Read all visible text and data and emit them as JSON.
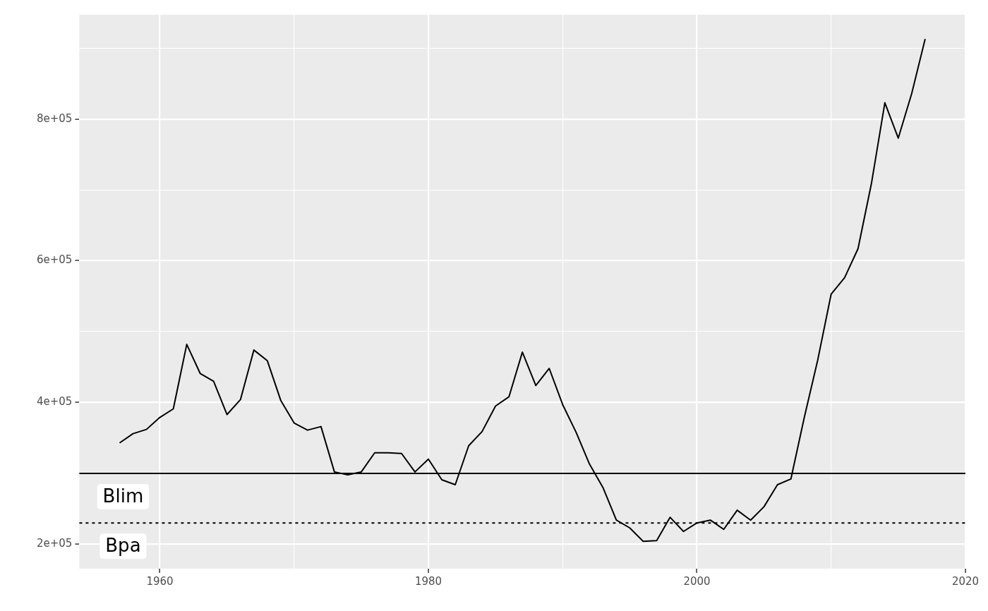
{
  "chart_data": {
    "type": "line",
    "x": [
      1957,
      1958,
      1959,
      1960,
      1961,
      1962,
      1963,
      1964,
      1965,
      1966,
      1967,
      1968,
      1969,
      1970,
      1971,
      1972,
      1973,
      1974,
      1975,
      1976,
      1977,
      1978,
      1979,
      1980,
      1981,
      1982,
      1983,
      1984,
      1985,
      1986,
      1987,
      1988,
      1989,
      1990,
      1991,
      1992,
      1993,
      1994,
      1995,
      1996,
      1997,
      1998,
      1999,
      2000,
      2001,
      2002,
      2003,
      2004,
      2005,
      2006,
      2007,
      2008,
      2009,
      2010,
      2011,
      2012,
      2013,
      2014,
      2015,
      2016,
      2017
    ],
    "series": [
      {
        "color": "#000000",
        "values": [
          343000,
          356000,
          362000,
          379000,
          391000,
          482000,
          441000,
          430000,
          383000,
          404000,
          474000,
          459000,
          403000,
          371000,
          361000,
          366000,
          302000,
          298000,
          302000,
          329000,
          329000,
          328000,
          302000,
          320000,
          291000,
          284000,
          339000,
          359000,
          395000,
          408000,
          471000,
          424000,
          448000,
          397000,
          358000,
          313000,
          280000,
          234000,
          223000,
          204000,
          205000,
          238000,
          218000,
          230000,
          234000,
          221000,
          248000,
          234000,
          253000,
          284000,
          292000,
          379000,
          460000,
          553000,
          576000,
          617000,
          709000,
          823000,
          773000,
          836000,
          913000
        ]
      }
    ],
    "xlim": [
      1954,
      2020
    ],
    "ylim": [
      165500,
      947000
    ],
    "xticks": [
      1960,
      {
        "value": 1970,
        "label": null
      },
      1980,
      {
        "value": 1990,
        "label": null
      },
      2000,
      {
        "value": 2010,
        "label": null
      },
      2020
    ],
    "yticks": [
      {
        "value": 200000,
        "label": "2e+05"
      },
      {
        "value": 300000,
        "label": null
      },
      {
        "value": 400000,
        "label": "4e+05"
      },
      {
        "value": 500000,
        "label": null
      },
      {
        "value": 600000,
        "label": "6e+05"
      },
      {
        "value": 700000,
        "label": null
      },
      {
        "value": 800000,
        "label": "8e+05"
      },
      {
        "value": 900000,
        "label": null
      }
    ],
    "grid": true,
    "ref_lines": [
      {
        "axis": "y",
        "value": 300000,
        "label": "Blim",
        "color": "#000000",
        "line_style": "solid"
      },
      {
        "axis": "y",
        "value": 230000,
        "label": "Bpa",
        "color": "#000000",
        "line_style": "dotted"
      }
    ]
  }
}
